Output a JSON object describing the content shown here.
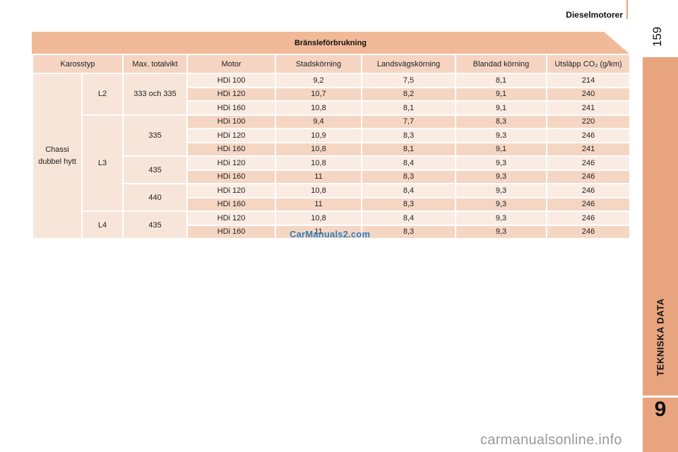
{
  "header": {
    "title": "Dieselmotorer",
    "page_number": "159"
  },
  "side_tab": {
    "label": "TEKNISKA DATA",
    "chapter": "9"
  },
  "table": {
    "title": "Bränsleförbrukning",
    "columns": [
      "Karosstyp",
      "Max. totalvikt",
      "Motor",
      "Stadskörning",
      "Landsvägskörning",
      "Blandad körning",
      "Utsläpp CO₂ (g/km)"
    ],
    "body_type": "Chassi dubbel hytt",
    "groups": [
      {
        "length": "L2",
        "weights": [
          {
            "weight": "333 och 335",
            "rows": [
              {
                "motor": "HDi 100",
                "city": "9,2",
                "road": "7,5",
                "mixed": "8,1",
                "co2": "214"
              },
              {
                "motor": "HDi 120",
                "city": "10,7",
                "road": "8,2",
                "mixed": "9,1",
                "co2": "240"
              },
              {
                "motor": "HDi 160",
                "city": "10,8",
                "road": "8,1",
                "mixed": "9,1",
                "co2": "241"
              }
            ]
          }
        ]
      },
      {
        "length": "L3",
        "weights": [
          {
            "weight": "335",
            "rows": [
              {
                "motor": "HDi 100",
                "city": "9,4",
                "road": "7,7",
                "mixed": "8,3",
                "co2": "220"
              },
              {
                "motor": "HDi 120",
                "city": "10,9",
                "road": "8,3",
                "mixed": "9,3",
                "co2": "246"
              },
              {
                "motor": "HDi 160",
                "city": "10,8",
                "road": "8,1",
                "mixed": "9,1",
                "co2": "241"
              }
            ]
          },
          {
            "weight": "435",
            "rows": [
              {
                "motor": "HDi 120",
                "city": "10,8",
                "road": "8,4",
                "mixed": "9,3",
                "co2": "246"
              },
              {
                "motor": "HDi 160",
                "city": "11",
                "road": "8,3",
                "mixed": "9,3",
                "co2": "246"
              }
            ]
          },
          {
            "weight": "440",
            "rows": [
              {
                "motor": "HDi 120",
                "city": "10,8",
                "road": "8,4",
                "mixed": "9,3",
                "co2": "246"
              },
              {
                "motor": "HDi 160",
                "city": "11",
                "road": "8,3",
                "mixed": "9,3",
                "co2": "246"
              }
            ]
          }
        ]
      },
      {
        "length": "L4",
        "weights": [
          {
            "weight": "435",
            "rows": [
              {
                "motor": "HDi 120",
                "city": "10,8",
                "road": "8,4",
                "mixed": "9,3",
                "co2": "246"
              },
              {
                "motor": "HDi 160",
                "city": "11",
                "road": "8,3",
                "mixed": "9,3",
                "co2": "246"
              }
            ]
          }
        ]
      }
    ]
  },
  "watermark": "CarManuals2.com",
  "footer_watermark": "carmanualsonline.info",
  "colors": {
    "accent": "#e8a47e",
    "title_bar": "#f0b997",
    "row_light": "#fbece3",
    "row_dark": "#f5d6c3",
    "watermark": "#2e7fbf"
  }
}
